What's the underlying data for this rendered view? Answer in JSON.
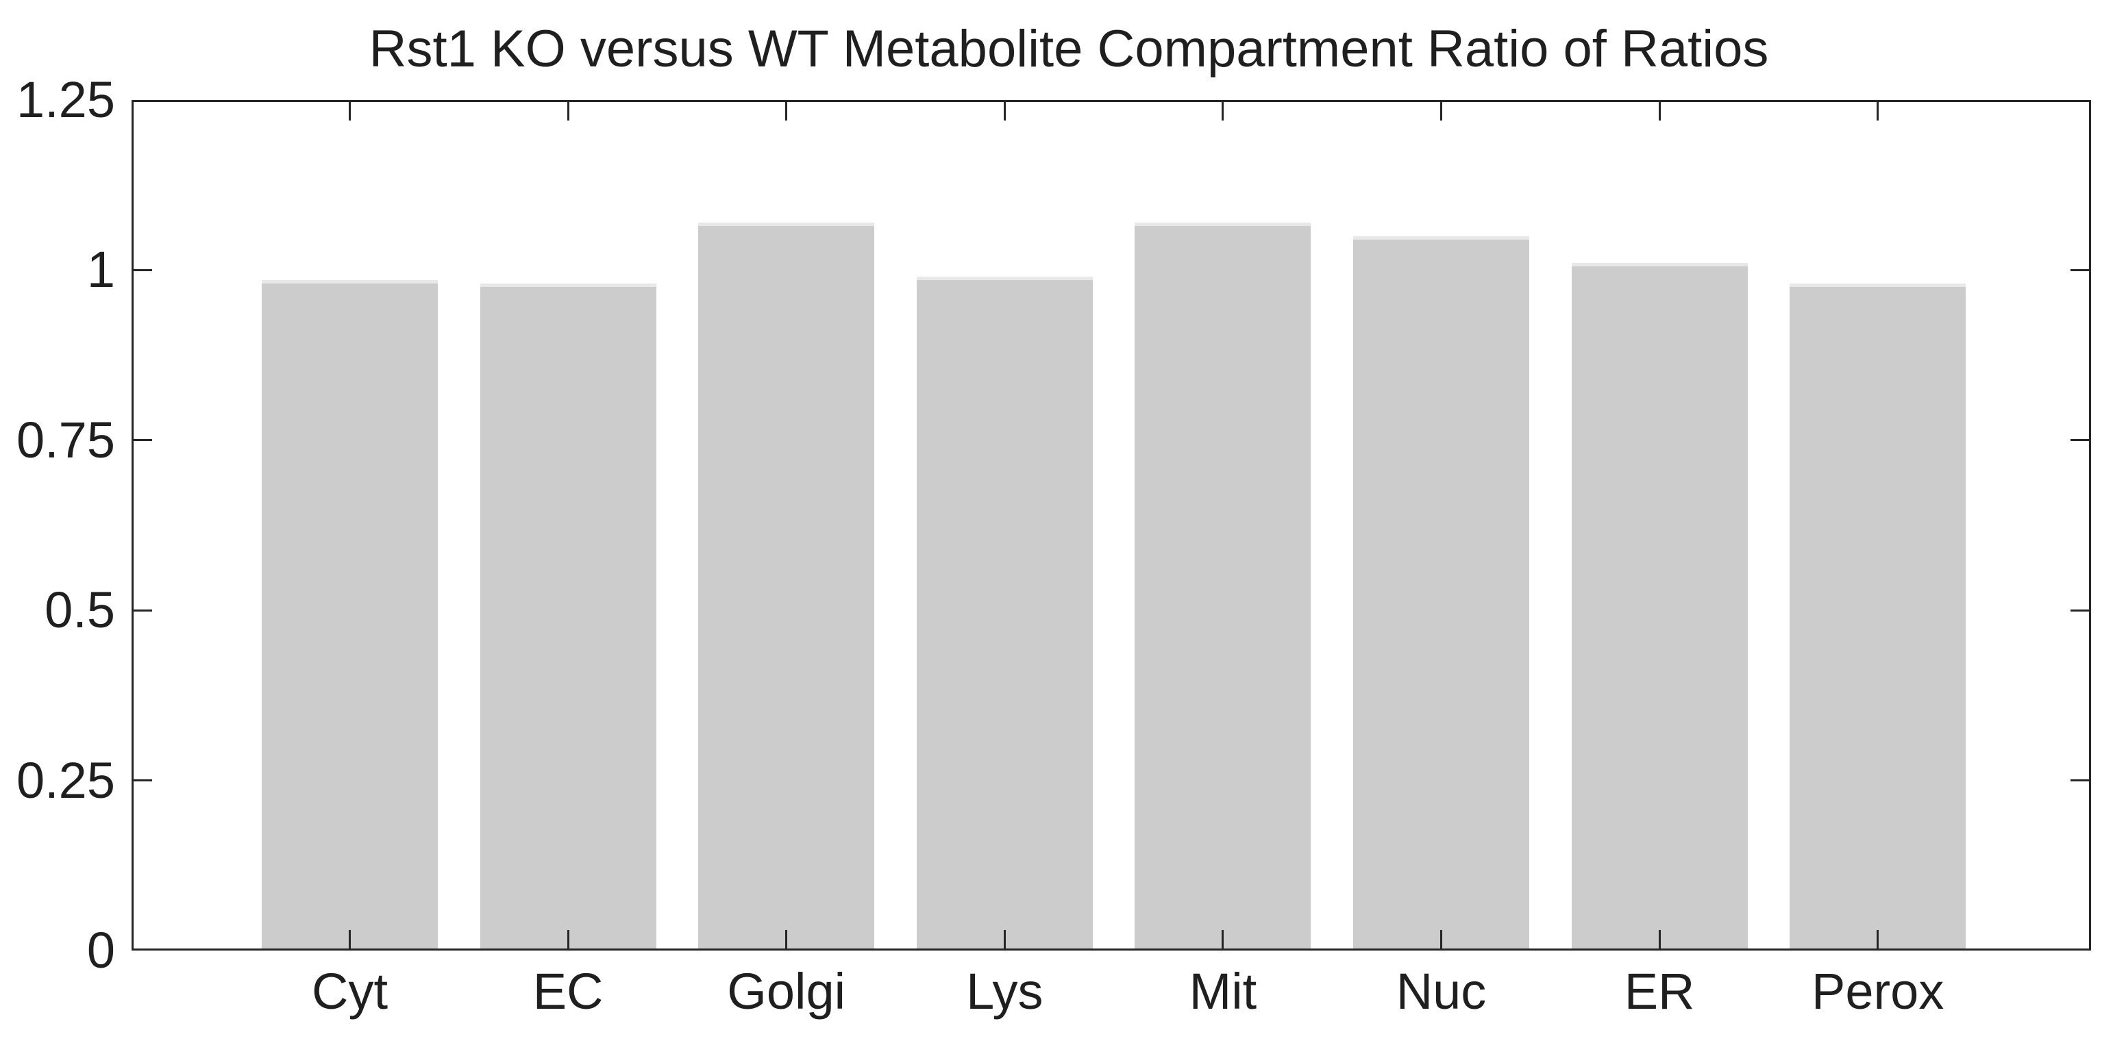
{
  "figure": {
    "background": "#ffffff"
  },
  "chart_data": {
    "type": "bar",
    "title": "Rst1 KO versus WT Metabolite Compartment Ratio of Ratios",
    "categories": [
      "Cyt",
      "EC",
      "Golgi",
      "Lys",
      "Mit",
      "Nuc",
      "ER",
      "Perox"
    ],
    "values": [
      0.985,
      0.98,
      1.07,
      0.99,
      1.07,
      1.05,
      1.01,
      0.98
    ],
    "xlabel": "",
    "ylabel": "",
    "ylim": [
      0,
      1.25
    ],
    "yticks": [
      0,
      0.25,
      0.5,
      0.75,
      1,
      1.25
    ],
    "ytick_labels": [
      "0",
      "0.25",
      "0.5",
      "0.75",
      "1",
      "1.25"
    ],
    "grid": false,
    "legend": "none",
    "bar_width_fraction": 0.8,
    "style": {
      "bar_fill": "#cccccc",
      "bar_top_highlight": "#e8e8e8",
      "axis_color": "#262626",
      "text_color": "#1f1f1f",
      "background": "#ffffff"
    }
  }
}
